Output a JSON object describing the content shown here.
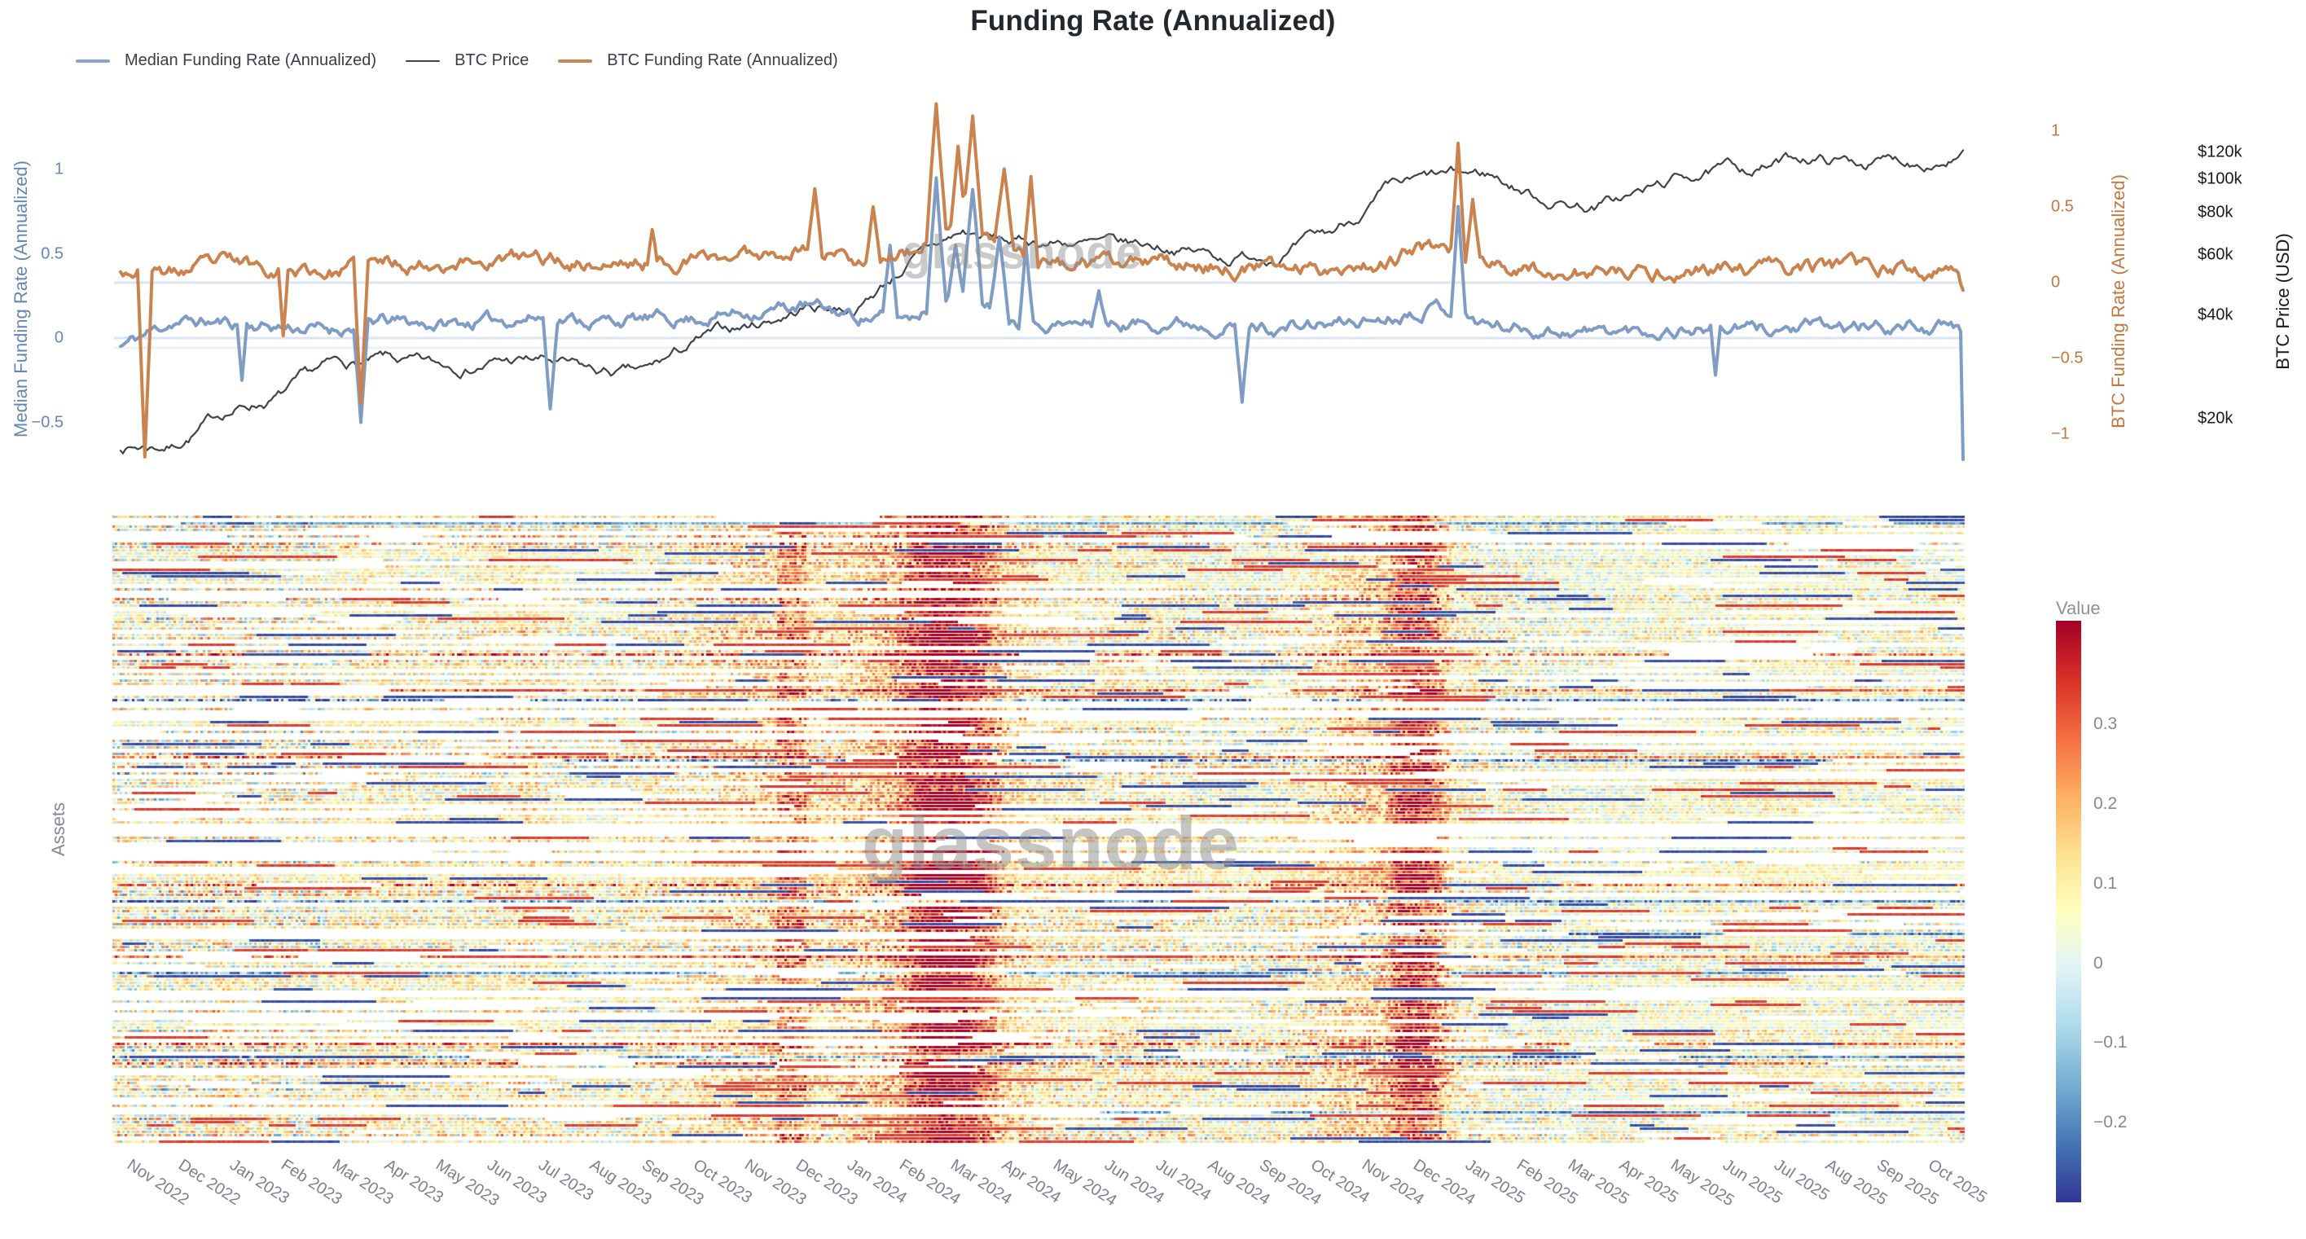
{
  "title": "Funding Rate (Annualized)",
  "watermark": "glassnode",
  "chart_data": [
    {
      "type": "line",
      "title": "Funding Rate (Annualized)",
      "x_start": "Nov 2022",
      "x_end": "Oct 2025",
      "x_labels": [
        "Nov 2022",
        "Dec 2022",
        "Jan 2023",
        "Feb 2023",
        "Mar 2023",
        "Apr 2023",
        "May 2023",
        "Jun 2023",
        "Jul 2023",
        "Aug 2023",
        "Sep 2023",
        "Oct 2023",
        "Nov 2023",
        "Dec 2023",
        "Jan 2024",
        "Feb 2024",
        "Mar 2024",
        "Apr 2024",
        "May 2024",
        "Jun 2024",
        "Jul 2024",
        "Aug 2024",
        "Sep 2024",
        "Oct 2024",
        "Nov 2024",
        "Dec 2024",
        "Jan 2025",
        "Feb 2025",
        "Mar 2025",
        "Apr 2025",
        "May 2025",
        "Jun 2025",
        "Jul 2025",
        "Aug 2025",
        "Sep 2025",
        "Oct 2025"
      ],
      "axes": {
        "left": {
          "title": "Median Funding Rate (Annualized)",
          "color": "#6286b8",
          "ticks": [
            {
              "label": "1",
              "value": 1
            },
            {
              "label": "0.5",
              "value": 0.5
            },
            {
              "label": "0",
              "value": 0
            },
            {
              "label": "−0.5",
              "value": -0.5
            }
          ]
        },
        "right_funding": {
          "title": "BTC Funding Rate (Annualized)",
          "color": "#c2773f",
          "ticks": [
            {
              "label": "1",
              "value": 1
            },
            {
              "label": "0.5",
              "value": 0.5
            },
            {
              "label": "0",
              "value": 0
            },
            {
              "label": "−0.5",
              "value": -0.5
            },
            {
              "label": "−1",
              "value": -1
            }
          ]
        },
        "right_price": {
          "title": "BTC Price (USD)",
          "color": "#16191e",
          "scale": "log",
          "ticks": [
            {
              "label": "$120k",
              "value": 120
            },
            {
              "label": "$100k",
              "value": 100
            },
            {
              "label": "$80k",
              "value": 80
            },
            {
              "label": "$60k",
              "value": 60
            },
            {
              "label": "$40k",
              "value": 40
            },
            {
              "label": "$20k",
              "value": 20
            }
          ]
        }
      },
      "series": [
        {
          "name": "Median Funding Rate (Annualized)",
          "axis": "left",
          "color": "#7f9dc4",
          "width": 4,
          "monthly_values": [
            -0.05,
            0.1,
            0.09,
            0.07,
            0.05,
            0.1,
            0.08,
            0.1,
            0.13,
            0.1,
            0.11,
            0.12,
            0.16,
            0.19,
            0.13,
            0.12,
            0.3,
            0.12,
            0.08,
            0.08,
            0.1,
            0.08,
            0.06,
            0.08,
            0.12,
            0.2,
            0.08,
            0.05,
            0.04,
            0.04,
            0.06,
            0.05,
            0.06,
            0.06,
            0.07,
            0.05
          ],
          "spikes": [
            {
              "m": 2.3,
              "v": -0.25,
              "w": 1
            },
            {
              "m": 4.55,
              "v": -0.5,
              "w": 2
            },
            {
              "m": 8.15,
              "v": -0.42,
              "w": 2
            },
            {
              "m": 14.6,
              "v": 0.55,
              "w": 2
            },
            {
              "m": 15.5,
              "v": 0.95,
              "w": 3
            },
            {
              "m": 15.85,
              "v": 0.55,
              "w": 2
            },
            {
              "m": 16.2,
              "v": 0.88,
              "w": 3
            },
            {
              "m": 16.7,
              "v": 0.6,
              "w": 3
            },
            {
              "m": 17.2,
              "v": 0.55,
              "w": 2
            },
            {
              "m": 18.6,
              "v": 0.28,
              "w": 2
            },
            {
              "m": 21.3,
              "v": -0.38,
              "w": 2
            },
            {
              "m": 25.4,
              "v": 0.78,
              "w": 2
            },
            {
              "m": 30.3,
              "v": -0.22,
              "w": 1
            }
          ],
          "end_value": -0.72
        },
        {
          "name": "BTC Price",
          "axis": "right_price",
          "color": "#3f434a",
          "width": 2.2,
          "monthly_values_usd_k": [
            16.5,
            16.9,
            21.0,
            23.3,
            27.5,
            28.8,
            27.2,
            29.5,
            29.3,
            26.5,
            26.5,
            33.0,
            37.0,
            42.5,
            42.8,
            58.0,
            69.0,
            64.5,
            66.0,
            62.0,
            63.5,
            59.0,
            62.0,
            68.0,
            90.0,
            97.0,
            101.0,
            88.0,
            84.0,
            92.0,
            104.0,
            106.5,
            116.0,
            112.5,
            113.5,
            120.0
          ]
        },
        {
          "name": "BTC Funding Rate (Annualized)",
          "axis": "right_funding",
          "color": "#ca834e",
          "width": 4,
          "monthly_values": [
            0.1,
            0.06,
            0.13,
            0.1,
            0.07,
            0.13,
            0.13,
            0.15,
            0.16,
            0.12,
            0.13,
            0.15,
            0.19,
            0.24,
            0.16,
            0.2,
            0.4,
            0.18,
            0.12,
            0.11,
            0.13,
            0.1,
            0.09,
            0.11,
            0.14,
            0.25,
            0.12,
            0.08,
            0.06,
            0.05,
            0.09,
            0.08,
            0.11,
            0.09,
            0.09,
            0.06
          ],
          "spikes": [
            {
              "m": 0.45,
              "v": -1.15,
              "w": 2
            },
            {
              "m": 3.1,
              "v": -0.35,
              "w": 1
            },
            {
              "m": 4.55,
              "v": -0.8,
              "w": 2
            },
            {
              "m": 10.1,
              "v": 0.35,
              "w": 1
            },
            {
              "m": 13.2,
              "v": 0.62,
              "w": 2
            },
            {
              "m": 14.3,
              "v": 0.5,
              "w": 2
            },
            {
              "m": 15.5,
              "v": 1.18,
              "w": 3
            },
            {
              "m": 15.9,
              "v": 0.9,
              "w": 2
            },
            {
              "m": 16.2,
              "v": 1.1,
              "w": 3
            },
            {
              "m": 16.8,
              "v": 0.75,
              "w": 3
            },
            {
              "m": 17.3,
              "v": 0.7,
              "w": 2
            },
            {
              "m": 25.4,
              "v": 0.92,
              "w": 2
            },
            {
              "m": 25.7,
              "v": 0.55,
              "w": 2
            },
            {
              "m": 35.0,
              "v": -0.05,
              "w": 1
            }
          ]
        }
      ]
    },
    {
      "type": "heatmap",
      "ylabel": "Assets",
      "x_labels": [
        "Nov 2022",
        "Dec 2022",
        "Jan 2023",
        "Feb 2023",
        "Mar 2023",
        "Apr 2023",
        "May 2023",
        "Jun 2023",
        "Jul 2023",
        "Aug 2023",
        "Sep 2023",
        "Oct 2023",
        "Nov 2023",
        "Dec 2023",
        "Jan 2024",
        "Feb 2024",
        "Mar 2024",
        "Apr 2024",
        "May 2024",
        "Jun 2024",
        "Jul 2024",
        "Aug 2024",
        "Sep 2024",
        "Oct 2024",
        "Nov 2024",
        "Dec 2024",
        "Jan 2025",
        "Feb 2025",
        "Mar 2025",
        "Apr 2025",
        "May 2025",
        "Jun 2025",
        "Jul 2025",
        "Aug 2025",
        "Sep 2025",
        "Oct 2025"
      ],
      "month_mean_value": [
        0.06,
        0.04,
        0.1,
        0.07,
        0.05,
        0.1,
        0.07,
        0.08,
        0.12,
        0.05,
        0.07,
        0.1,
        0.14,
        0.18,
        0.12,
        0.22,
        0.26,
        0.18,
        0.1,
        0.08,
        0.1,
        0.07,
        0.05,
        0.08,
        0.16,
        0.2,
        0.09,
        0.05,
        0.04,
        0.04,
        0.06,
        0.05,
        0.07,
        0.06,
        0.06,
        0.05
      ],
      "hot_bands": [
        {
          "from": "Feb 2024",
          "to": "Apr 2024"
        },
        {
          "from": "Nov 2024",
          "to": "Dec 2024"
        }
      ],
      "colorbar": {
        "title": "Value",
        "domain_max": 0.43,
        "domain_min": -0.3,
        "ticks": [
          {
            "label": "0.3",
            "value": 0.3
          },
          {
            "label": "0.2",
            "value": 0.2
          },
          {
            "label": "0.1",
            "value": 0.1
          },
          {
            "label": "0",
            "value": 0
          },
          {
            "label": "−0.1",
            "value": -0.1
          },
          {
            "label": "−0.2",
            "value": -0.2
          }
        ],
        "palette": [
          "#a50026",
          "#d73027",
          "#f46d43",
          "#fdae61",
          "#fee090",
          "#ffffbf",
          "#e0f3f8",
          "#abd9e9",
          "#74add1",
          "#4575b4",
          "#313695"
        ]
      }
    }
  ]
}
